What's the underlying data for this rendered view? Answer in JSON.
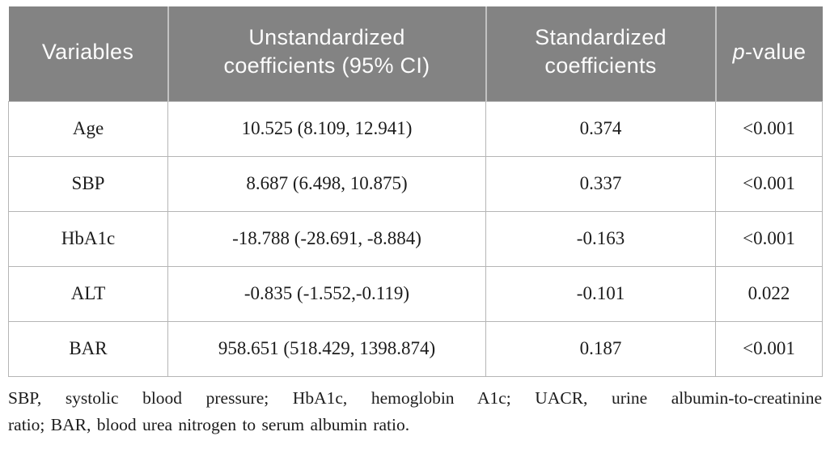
{
  "table": {
    "columns": [
      {
        "label": "Variables"
      },
      {
        "label": "Unstandardized coefficients (95% CI)"
      },
      {
        "label": "Standardized coefficients"
      },
      {
        "label_italic": "p",
        "label_rest": "-value"
      }
    ],
    "rows": [
      {
        "variable": "Age",
        "unstandardized": "10.525 (8.109, 12.941)",
        "standardized": "0.374",
        "p_value": "<0.001"
      },
      {
        "variable": "SBP",
        "unstandardized": "8.687 (6.498, 10.875)",
        "standardized": "0.337",
        "p_value": "<0.001"
      },
      {
        "variable": "HbA1c",
        "unstandardized": "-18.788 (-28.691, -8.884)",
        "standardized": "-0.163",
        "p_value": "<0.001"
      },
      {
        "variable": "ALT",
        "unstandardized": "-0.835 (-1.552,-0.119)",
        "standardized": "-0.101",
        "p_value": "0.022"
      },
      {
        "variable": "BAR",
        "unstandardized": "958.651 (518.429, 1398.874)",
        "standardized": "0.187",
        "p_value": "<0.001"
      }
    ]
  },
  "footnote": {
    "line1": "SBP, systolic blood pressure; HbA1c, hemoglobin A1c; UACR, urine albumin-to-creatinine",
    "line2": "ratio; BAR, blood urea nitrogen to serum albumin ratio."
  },
  "colors": {
    "header_background": "#838383",
    "header_text": "#fcfcfc",
    "body_text": "#1c1c1c",
    "cell_border": "#b5b5b5",
    "header_separator": "#c2c2c2",
    "page_background": "#ffffff"
  }
}
